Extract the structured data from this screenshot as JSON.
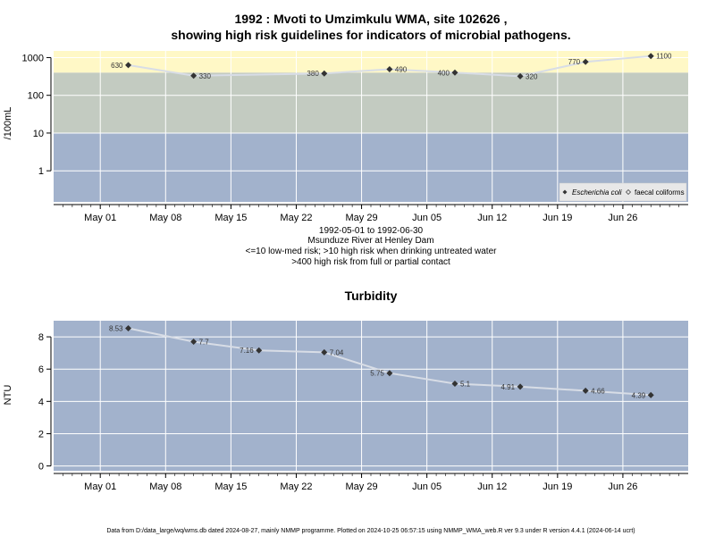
{
  "footer": "Data from D:/data_large/wq/wms.db dated 2024-08-27, mainly NMMP programme. Plotted on 2024-10-25 06:57:15 using NMMP_WMA_web.R ver 9.3 under R version 4.4.1 (2024-06-14 ucrt)",
  "chart_data": [
    {
      "type": "scatter",
      "title_line1": "1992 : Mvoti to Umzimkulu WMA, site 102626 ,",
      "title_line2": "showing high risk guidelines for indicators of microbial pathogens.",
      "ylabel": "/100mL",
      "yscale": "log",
      "yticks": [
        1,
        10,
        100,
        1000
      ],
      "ylim": [
        0.15,
        1500
      ],
      "xlim": [
        "1992-04-26",
        "1992-07-03"
      ],
      "xticks": [
        "May 01",
        "May 08",
        "May 15",
        "May 22",
        "May 29",
        "Jun 05",
        "Jun 12",
        "Jun 19",
        "Jun 26"
      ],
      "xtick_dates": [
        "1992-05-01",
        "1992-05-08",
        "1992-05-15",
        "1992-05-22",
        "1992-05-29",
        "1992-06-05",
        "1992-06-12",
        "1992-06-19",
        "1992-06-26"
      ],
      "bands": [
        {
          "from": 0.15,
          "to": 10,
          "color": "#a2b2cc"
        },
        {
          "from": 10,
          "to": 400,
          "color": "#c3cbc1"
        },
        {
          "from": 400,
          "to": 1500,
          "color": "#fff8c6"
        }
      ],
      "series": [
        {
          "name": "Escherichia coli",
          "color": "#333333",
          "x": [
            "1992-05-04",
            "1992-05-11",
            "1992-05-25",
            "1992-06-01",
            "1992-06-08",
            "1992-06-15",
            "1992-06-22",
            "1992-06-29"
          ],
          "y": [
            630,
            330,
            380,
            490,
            400,
            320,
            770,
            1100
          ],
          "labels": [
            "630",
            "330",
            "380",
            "490",
            "400",
            "320",
            "770",
            "1100"
          ]
        }
      ],
      "legend": {
        "position": "bottom-right",
        "items": [
          "Escherichia coli",
          "faecal coliforms"
        ]
      },
      "caption": [
        "1992-05-01 to 1992-06-30",
        "Msunduze River at Henley Dam",
        "<=10 low-med risk; >10 high risk when drinking untreated water",
        ">400 high risk from full or partial contact"
      ]
    },
    {
      "type": "line",
      "title": "Turbidity",
      "ylabel": "NTU",
      "yticks": [
        0,
        2,
        4,
        6,
        8
      ],
      "ylim": [
        -0.3,
        9
      ],
      "xlim": [
        "1992-04-26",
        "1992-07-03"
      ],
      "xticks": [
        "May 01",
        "May 08",
        "May 15",
        "May 22",
        "May 29",
        "Jun 05",
        "Jun 12",
        "Jun 19",
        "Jun 26"
      ],
      "xtick_dates": [
        "1992-05-01",
        "1992-05-08",
        "1992-05-15",
        "1992-05-22",
        "1992-05-29",
        "1992-06-05",
        "1992-06-12",
        "1992-06-19",
        "1992-06-26"
      ],
      "series": [
        {
          "name": "",
          "color": "#333333",
          "x": [
            "1992-05-04",
            "1992-05-11",
            "1992-05-18",
            "1992-05-25",
            "1992-06-01",
            "1992-06-08",
            "1992-06-15",
            "1992-06-22",
            "1992-06-29"
          ],
          "y": [
            8.53,
            7.7,
            7.16,
            7.04,
            5.75,
            5.1,
            4.91,
            4.66,
            4.39
          ],
          "labels": [
            "8.53",
            "7.7",
            "7.16",
            "7.04",
            "5.75",
            "5.1",
            "4.91",
            "4.66",
            "4.39"
          ]
        }
      ]
    }
  ]
}
